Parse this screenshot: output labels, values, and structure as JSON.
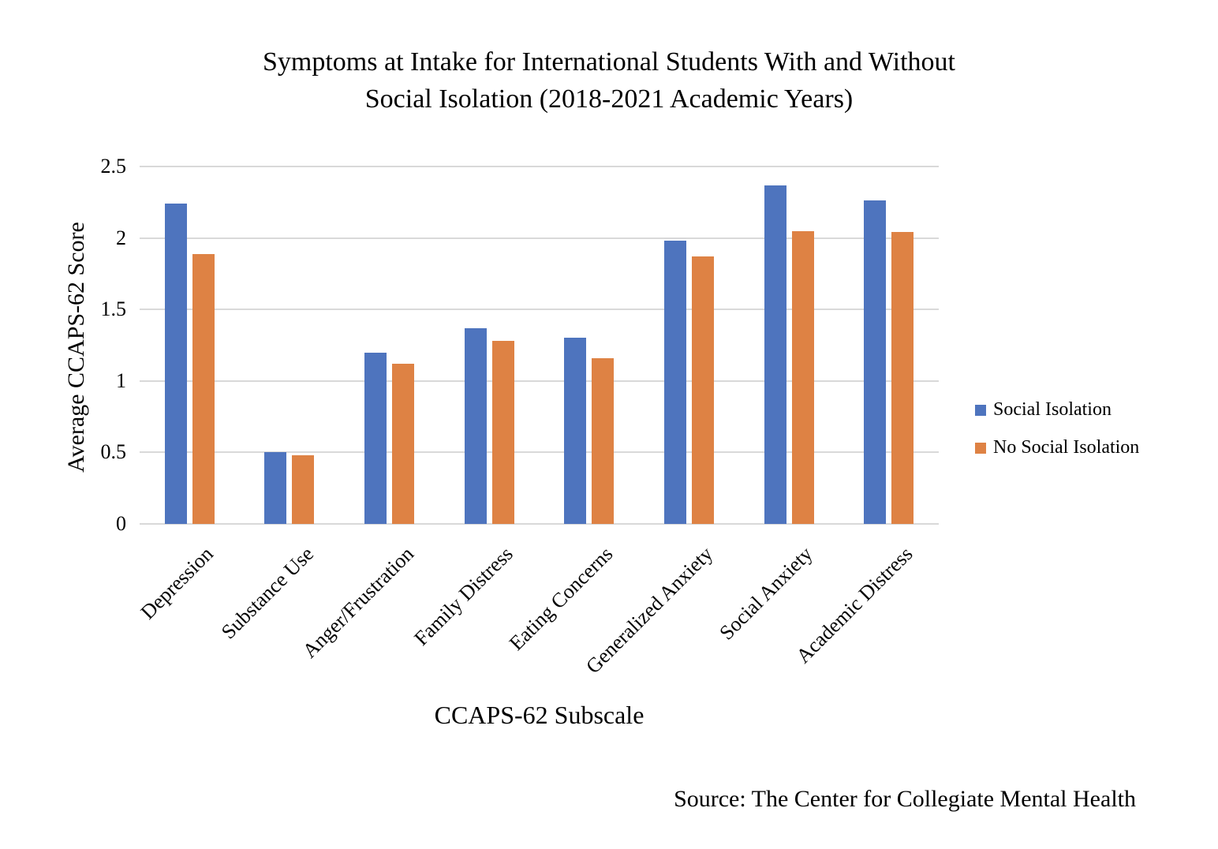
{
  "page": {
    "title_lines": [
      "Symptoms at Intake for International Students With and Without",
      "Social Isolation (2018-2021 Academic Years)"
    ],
    "source_note": "Source: The Center for Collegiate Mental Health"
  },
  "chart_data": {
    "type": "bar",
    "title": "Symptoms at Intake for International Students With and Without Social Isolation (2018-2021 Academic Years)",
    "xlabel": "CCAPS-62 Subscale",
    "ylabel": "Average CCAPS-62 Score",
    "ylim": [
      0,
      2.5
    ],
    "y_ticks": [
      "0",
      "0.5",
      "1",
      "1.5",
      "2",
      "2.5"
    ],
    "grid": true,
    "grid_color": "#D9D9D9",
    "text_color": "#000000",
    "legend_position": "right",
    "categories": [
      "Depression",
      "Substance Use",
      "Anger/Frustration",
      "Family Distress",
      "Eating Concerns",
      "Generalized Anxiety",
      "Social Anxiety",
      "Academic Distress"
    ],
    "series": [
      {
        "name": "Social Isolation",
        "color": "#4E74BE",
        "values": [
          2.24,
          0.5,
          1.2,
          1.37,
          1.3,
          1.98,
          2.37,
          2.26
        ]
      },
      {
        "name": "No Social Isolation",
        "color": "#DE8244",
        "values": [
          1.89,
          0.48,
          1.12,
          1.28,
          1.16,
          1.87,
          2.05,
          2.04
        ]
      }
    ],
    "source": "Source: The Center for Collegiate Mental Health"
  }
}
